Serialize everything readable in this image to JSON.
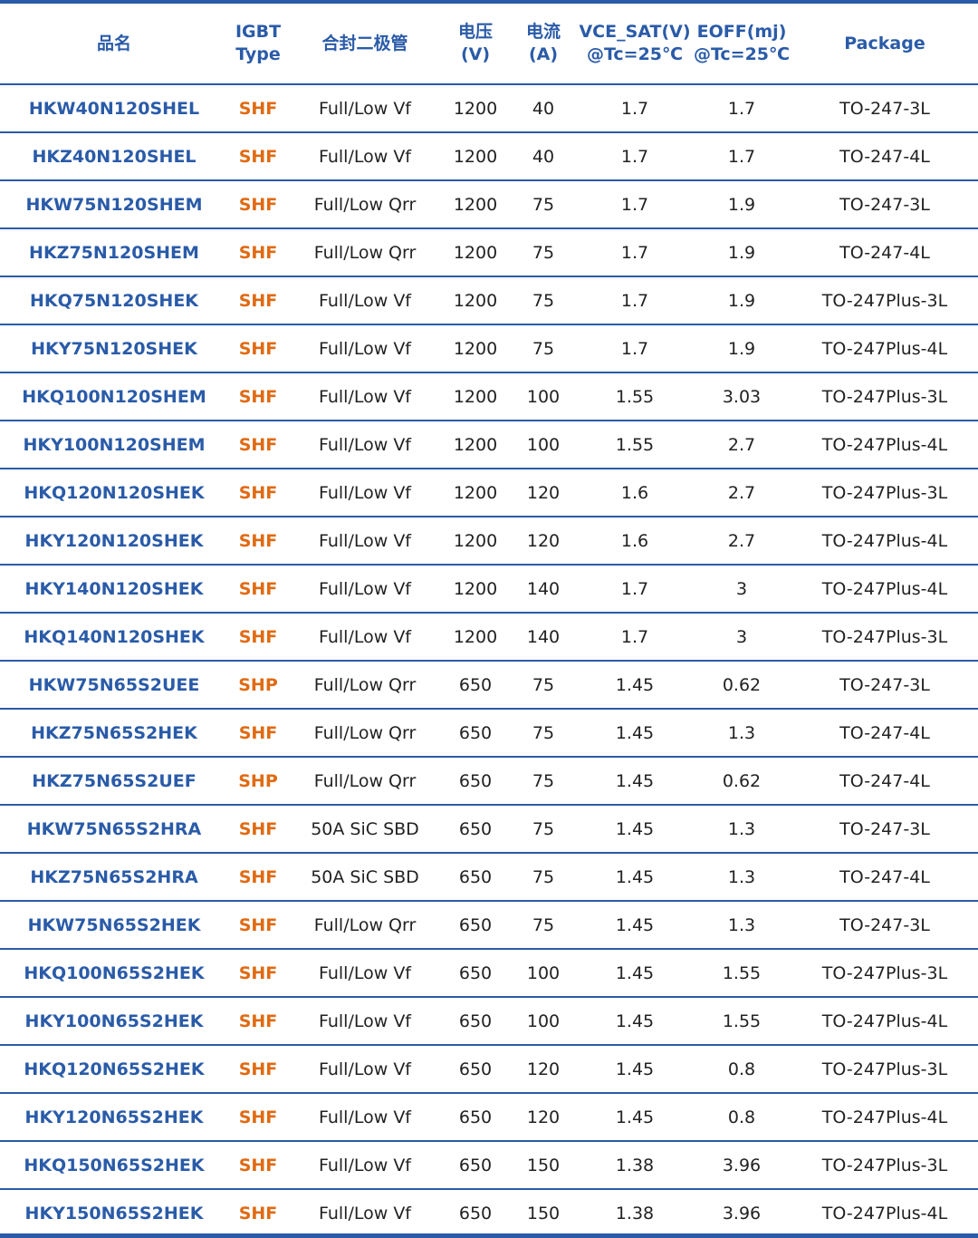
{
  "colors": {
    "accent": "#2a5ba8",
    "type_orange": "#e06a12",
    "text": "#222222"
  },
  "headers": {
    "name": "品名",
    "type_l1": "IGBT",
    "type_l2": "Type",
    "diode": "合封二极管",
    "volt_l1": "电压",
    "volt_l2": "(V)",
    "curr_l1": "电流",
    "curr_l2": "(A)",
    "vce_l1": "VCE_SAT(V)",
    "vce_l2": "@Tc=25℃",
    "eoff_l1": "EOFF(mj)",
    "eoff_l2": "@Tc=25℃",
    "pkg": "Package"
  },
  "rows": [
    [
      "HKW40N120SHEL",
      "SHF",
      "Full/Low Vf",
      "1200",
      "40",
      "1.7",
      "1.7",
      "TO-247-3L"
    ],
    [
      "HKZ40N120SHEL",
      "SHF",
      "Full/Low Vf",
      "1200",
      "40",
      "1.7",
      "1.7",
      "TO-247-4L"
    ],
    [
      "HKW75N120SHEM",
      "SHF",
      "Full/Low Qrr",
      "1200",
      "75",
      "1.7",
      "1.9",
      "TO-247-3L"
    ],
    [
      "HKZ75N120SHEM",
      "SHF",
      "Full/Low Qrr",
      "1200",
      "75",
      "1.7",
      "1.9",
      "TO-247-4L"
    ],
    [
      "HKQ75N120SHEK",
      "SHF",
      "Full/Low Vf",
      "1200",
      "75",
      "1.7",
      "1.9",
      "TO-247Plus-3L"
    ],
    [
      "HKY75N120SHEK",
      "SHF",
      "Full/Low Vf",
      "1200",
      "75",
      "1.7",
      "1.9",
      "TO-247Plus-4L"
    ],
    [
      "HKQ100N120SHEM",
      "SHF",
      "Full/Low Vf",
      "1200",
      "100",
      "1.55",
      "3.03",
      "TO-247Plus-3L"
    ],
    [
      "HKY100N120SHEM",
      "SHF",
      "Full/Low Vf",
      "1200",
      "100",
      "1.55",
      "2.7",
      "TO-247Plus-4L"
    ],
    [
      "HKQ120N120SHEK",
      "SHF",
      "Full/Low Vf",
      "1200",
      "120",
      "1.6",
      "2.7",
      "TO-247Plus-3L"
    ],
    [
      "HKY120N120SHEK",
      "SHF",
      "Full/Low Vf",
      "1200",
      "120",
      "1.6",
      "2.7",
      "TO-247Plus-4L"
    ],
    [
      "HKY140N120SHEK",
      "SHF",
      "Full/Low Vf",
      "1200",
      "140",
      "1.7",
      "3",
      "TO-247Plus-4L"
    ],
    [
      "HKQ140N120SHEK",
      "SHF",
      "Full/Low Vf",
      "1200",
      "140",
      "1.7",
      "3",
      "TO-247Plus-3L"
    ],
    [
      "HKW75N65S2UEE",
      "SHP",
      "Full/Low Qrr",
      "650",
      "75",
      "1.45",
      "0.62",
      "TO-247-3L"
    ],
    [
      "HKZ75N65S2HEK",
      "SHF",
      "Full/Low Qrr",
      "650",
      "75",
      "1.45",
      "1.3",
      "TO-247-4L"
    ],
    [
      "HKZ75N65S2UEF",
      "SHP",
      "Full/Low Qrr",
      "650",
      "75",
      "1.45",
      "0.62",
      "TO-247-4L"
    ],
    [
      "HKW75N65S2HRA",
      "SHF",
      "50A SiC SBD",
      "650",
      "75",
      "1.45",
      "1.3",
      "TO-247-3L"
    ],
    [
      "HKZ75N65S2HRA",
      "SHF",
      "50A SiC SBD",
      "650",
      "75",
      "1.45",
      "1.3",
      "TO-247-4L"
    ],
    [
      "HKW75N65S2HEK",
      "SHF",
      "Full/Low Qrr",
      "650",
      "75",
      "1.45",
      "1.3",
      "TO-247-3L"
    ],
    [
      "HKQ100N65S2HEK",
      "SHF",
      "Full/Low Vf",
      "650",
      "100",
      "1.45",
      "1.55",
      "TO-247Plus-3L"
    ],
    [
      "HKY100N65S2HEK",
      "SHF",
      "Full/Low Vf",
      "650",
      "100",
      "1.45",
      "1.55",
      "TO-247Plus-4L"
    ],
    [
      "HKQ120N65S2HEK",
      "SHF",
      "Full/Low Vf",
      "650",
      "120",
      "1.45",
      "0.8",
      "TO-247Plus-3L"
    ],
    [
      "HKY120N65S2HEK",
      "SHF",
      "Full/Low Vf",
      "650",
      "120",
      "1.45",
      "0.8",
      "TO-247Plus-4L"
    ],
    [
      "HKQ150N65S2HEK",
      "SHF",
      "Full/Low Vf",
      "650",
      "150",
      "1.38",
      "3.96",
      "TO-247Plus-3L"
    ],
    [
      "HKY150N65S2HEK",
      "SHF",
      "Full/Low Vf",
      "650",
      "150",
      "1.38",
      "3.96",
      "TO-247Plus-4L"
    ]
  ]
}
